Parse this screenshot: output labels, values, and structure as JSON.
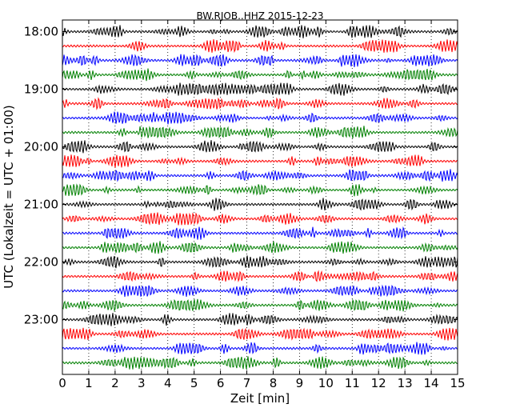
{
  "chart_data": {
    "type": "line",
    "title": "BW.RJOB..HHZ 2015-12-23",
    "xlabel": "Zeit  [min]",
    "ylabel": "UTC (Lokalzeit = UTC + 01:00)",
    "xlim": [
      0,
      15
    ],
    "x_ticks": [
      "0",
      "1",
      "2",
      "3",
      "4",
      "5",
      "6",
      "7",
      "8",
      "9",
      "10",
      "11",
      "12",
      "13",
      "14",
      "15"
    ],
    "x_grid": "dotted",
    "y_tick_labels": [
      "18:00",
      "19:00",
      "20:00",
      "21:00",
      "22:00",
      "23:00"
    ],
    "y_tick_traces": [
      0,
      4,
      8,
      12,
      16,
      20
    ],
    "trace_minutes": 15,
    "trace_count": 24,
    "trace_color_cycle": [
      "#000000",
      "#ff0000",
      "#0000ff",
      "#008000"
    ],
    "series": [
      {
        "start": "18:00",
        "color": "#000000"
      },
      {
        "start": "18:15",
        "color": "#ff0000"
      },
      {
        "start": "18:30",
        "color": "#0000ff"
      },
      {
        "start": "18:45",
        "color": "#008000"
      },
      {
        "start": "19:00",
        "color": "#000000"
      },
      {
        "start": "19:15",
        "color": "#ff0000"
      },
      {
        "start": "19:30",
        "color": "#0000ff"
      },
      {
        "start": "19:45",
        "color": "#008000"
      },
      {
        "start": "20:00",
        "color": "#000000"
      },
      {
        "start": "20:15",
        "color": "#ff0000"
      },
      {
        "start": "20:30",
        "color": "#0000ff"
      },
      {
        "start": "20:45",
        "color": "#008000"
      },
      {
        "start": "21:00",
        "color": "#000000"
      },
      {
        "start": "21:15",
        "color": "#ff0000"
      },
      {
        "start": "21:30",
        "color": "#0000ff"
      },
      {
        "start": "21:45",
        "color": "#008000"
      },
      {
        "start": "22:00",
        "color": "#000000"
      },
      {
        "start": "22:15",
        "color": "#ff0000"
      },
      {
        "start": "22:30",
        "color": "#0000ff"
      },
      {
        "start": "22:45",
        "color": "#008000"
      },
      {
        "start": "23:00",
        "color": "#000000"
      },
      {
        "start": "23:15",
        "color": "#ff0000"
      },
      {
        "start": "23:30",
        "color": "#0000ff"
      },
      {
        "start": "23:45",
        "color": "#008000"
      }
    ]
  }
}
